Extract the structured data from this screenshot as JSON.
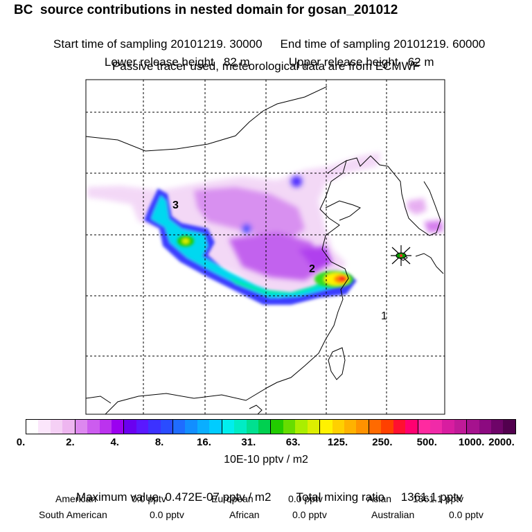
{
  "header": {
    "title": "BC  source contributions in nested domain for gosan_201012",
    "start_label": "Start time of sampling",
    "start_value": "20101219. 30000",
    "end_label": "End time of sampling",
    "end_value": "20101219. 60000",
    "lower_label": "Lower release height",
    "lower_value": "82 m",
    "upper_label": "Upper release height",
    "upper_value": "62 m",
    "note": "Passive tracer used, meteorological data are from ECMWF"
  },
  "map": {
    "labels": [
      "3",
      "2",
      "1"
    ],
    "colors": {
      "land_line": "#000000",
      "grid": "#000000",
      "marker": "#0aa000"
    }
  },
  "legend": {
    "tick_labels": [
      "0.",
      "2.",
      "4.",
      "8.",
      "16.",
      "31.",
      "63.",
      "125.",
      "250.",
      "500.",
      "1000.",
      "2000."
    ],
    "units": "10E-10 pptv / m2",
    "colors": [
      "#ffffff",
      "#fbe6fb",
      "#f5d0f5",
      "#eeb6f0",
      "#dd88ef",
      "#cc5cef",
      "#bb33ee",
      "#9b00f0",
      "#6a00f0",
      "#5a18ff",
      "#3c32ff",
      "#2a4cff",
      "#1f6cff",
      "#128eff",
      "#0aaeff",
      "#00ccff",
      "#00eeee",
      "#00ecc4",
      "#00e090",
      "#00d050",
      "#22cc00",
      "#66dd00",
      "#aaee00",
      "#ddee00",
      "#fff200",
      "#ffd000",
      "#ffb200",
      "#ff9200",
      "#ff6a00",
      "#ff4000",
      "#ff1030",
      "#ff0070",
      "#ff2aa0",
      "#f02aa8",
      "#d81da0",
      "#c01a98",
      "#a6128e",
      "#8c0a80",
      "#6e0468",
      "#52004e"
    ]
  },
  "summary": {
    "max_label": "Maximum value",
    "max_value": "0.472E-07 pptv / m2",
    "total_label": "Total mixing ratio",
    "total_value": "1361.1 pptv",
    "regions": [
      {
        "name": "American",
        "value": "0.0 pptv"
      },
      {
        "name": "European",
        "value": "0.0 pptv"
      },
      {
        "name": "Asian",
        "value": "1361.1 pptv"
      },
      {
        "name": "South American",
        "value": "0.0 pptv"
      },
      {
        "name": "African",
        "value": "0.0 pptv"
      },
      {
        "name": "Australian",
        "value": "0.0 pptv"
      }
    ]
  }
}
